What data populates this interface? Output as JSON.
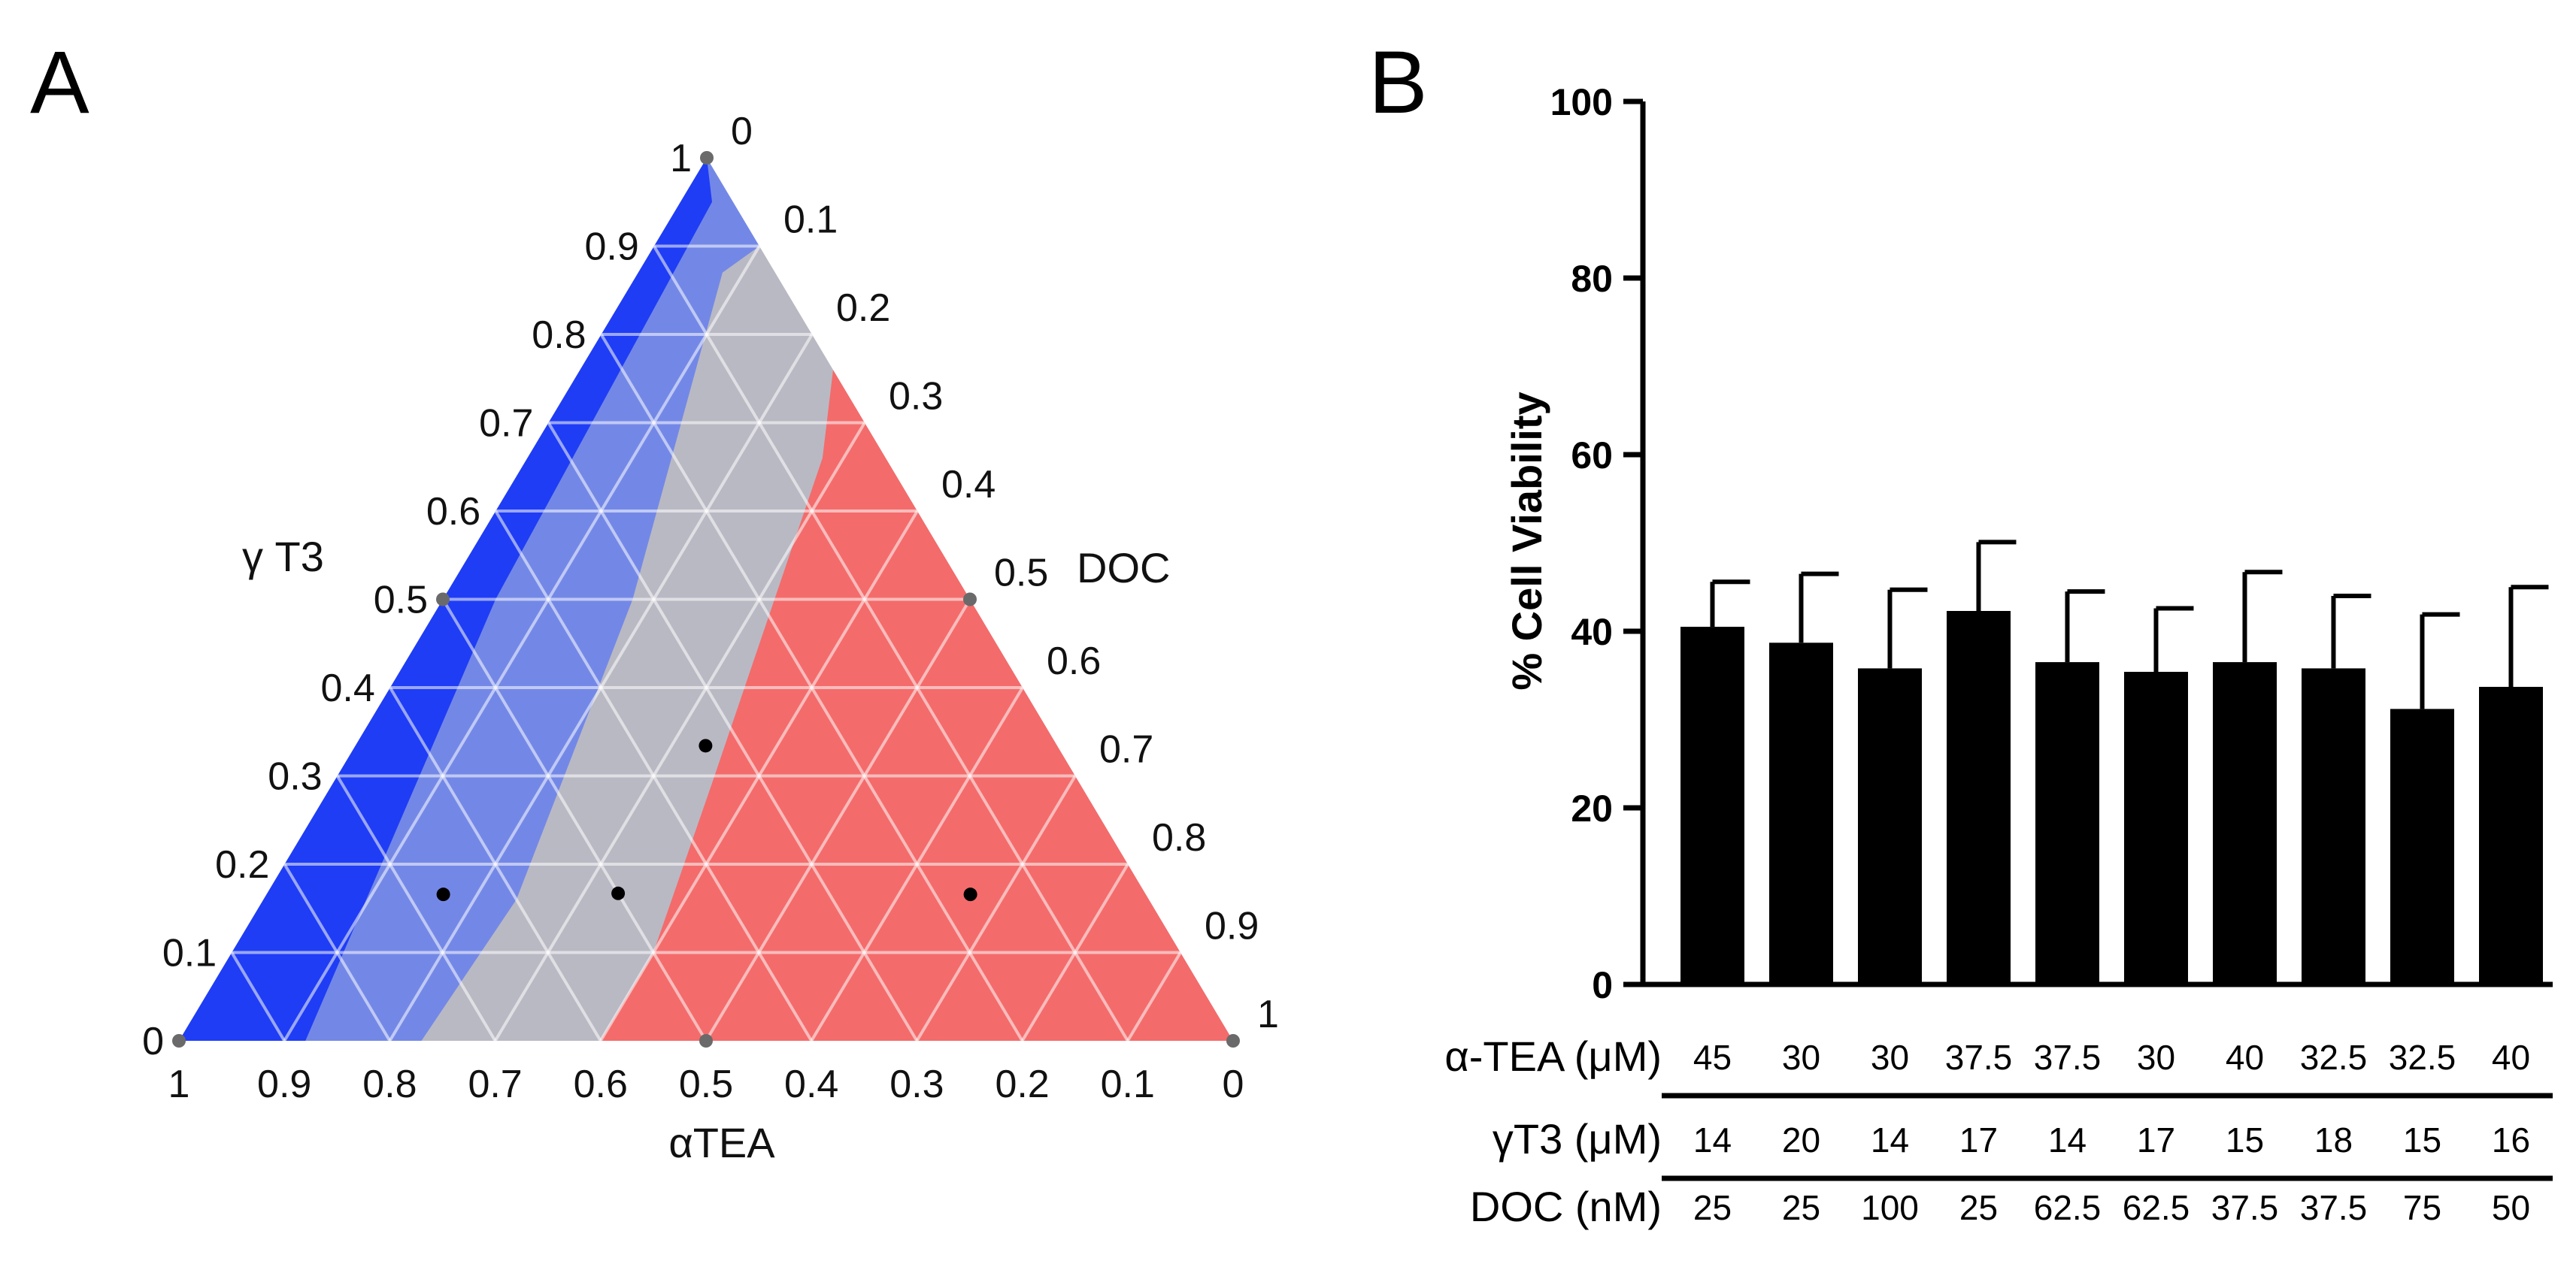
{
  "chart_data": [
    {
      "panel": "A",
      "type": "ternary",
      "axes": {
        "left": {
          "label": "γ T3"
        },
        "right": {
          "label": "DOC"
        },
        "bottom": {
          "label": "αTEA"
        }
      },
      "tick_labels": {
        "left": [
          "0",
          "0.1",
          "0.2",
          "0.3",
          "0.4",
          "0.5",
          "0.6",
          "0.7",
          "0.8",
          "0.9",
          "1"
        ],
        "right": [
          "0",
          "0.1",
          "0.2",
          "0.3",
          "0.4",
          "0.5",
          "0.6",
          "0.7",
          "0.8",
          "0.9",
          "1"
        ],
        "bottom": [
          "1",
          "0.9",
          "0.8",
          "0.7",
          "0.6",
          "0.5",
          "0.4",
          "0.3",
          "0.2",
          "0.1",
          "0"
        ]
      },
      "regions": [
        {
          "name": "dark-blue",
          "color": "#1f3df5",
          "bounds": "γT3-rich edge band"
        },
        {
          "name": "light-blue",
          "color": "#7388e6",
          "bounds": "intermediate band"
        },
        {
          "name": "gray",
          "color": "#b9b9c4",
          "bounds": "middle band"
        },
        {
          "name": "red",
          "color": "#f46b6b",
          "bounds": "DOC-rich region"
        }
      ],
      "points": [
        {
          "aTEA": 0.333,
          "gT3": 0.333,
          "DOC": 0.333
        },
        {
          "aTEA": 0.5,
          "gT3": 0.167,
          "DOC": 0.333
        },
        {
          "aTEA": 0.667,
          "gT3": 0.167,
          "DOC": 0.167
        },
        {
          "aTEA": 0.167,
          "gT3": 0.167,
          "DOC": 0.667
        }
      ],
      "vertices": [
        {
          "aTEA": 0,
          "gT3": 1,
          "DOC": 0
        },
        {
          "aTEA": 1,
          "gT3": 0,
          "DOC": 0
        },
        {
          "aTEA": 0,
          "gT3": 0,
          "DOC": 1
        },
        {
          "aTEA": 0.5,
          "gT3": 0.5,
          "DOC": 0
        },
        {
          "aTEA": 0,
          "gT3": 0.5,
          "DOC": 0.5
        },
        {
          "aTEA": 0.5,
          "gT3": 0,
          "DOC": 0.5
        }
      ]
    },
    {
      "panel": "B",
      "type": "bar",
      "ylabel": "% Cell  Viability",
      "ylim": [
        0,
        100
      ],
      "yticks": [
        "0",
        "20",
        "40",
        "60",
        "80",
        "100"
      ],
      "values": [
        40.5,
        38.7,
        35.8,
        42.3,
        36.5,
        35.4,
        36.5,
        35.8,
        31.2,
        33.7
      ],
      "error_plus": [
        5.1,
        7.8,
        8.9,
        7.8,
        8.0,
        7.2,
        10.2,
        8.2,
        10.7,
        11.3
      ],
      "bar_color": "#000000",
      "table": {
        "rows": [
          {
            "label": "α-TEA (μM)",
            "values": [
              "45",
              "30",
              "30",
              "37.5",
              "37.5",
              "30",
              "40",
              "32.5",
              "32.5",
              "40"
            ]
          },
          {
            "label": "γT3 (μM)",
            "values": [
              "14",
              "20",
              "14",
              "17",
              "14",
              "17",
              "15",
              "18",
              "15",
              "16"
            ]
          },
          {
            "label": "DOC (nM)",
            "values": [
              "25",
              "25",
              "100",
              "25",
              "62.5",
              "62.5",
              "37.5",
              "37.5",
              "75",
              "50"
            ]
          }
        ]
      }
    }
  ],
  "panel_labels": {
    "a": "A",
    "b": "B"
  }
}
